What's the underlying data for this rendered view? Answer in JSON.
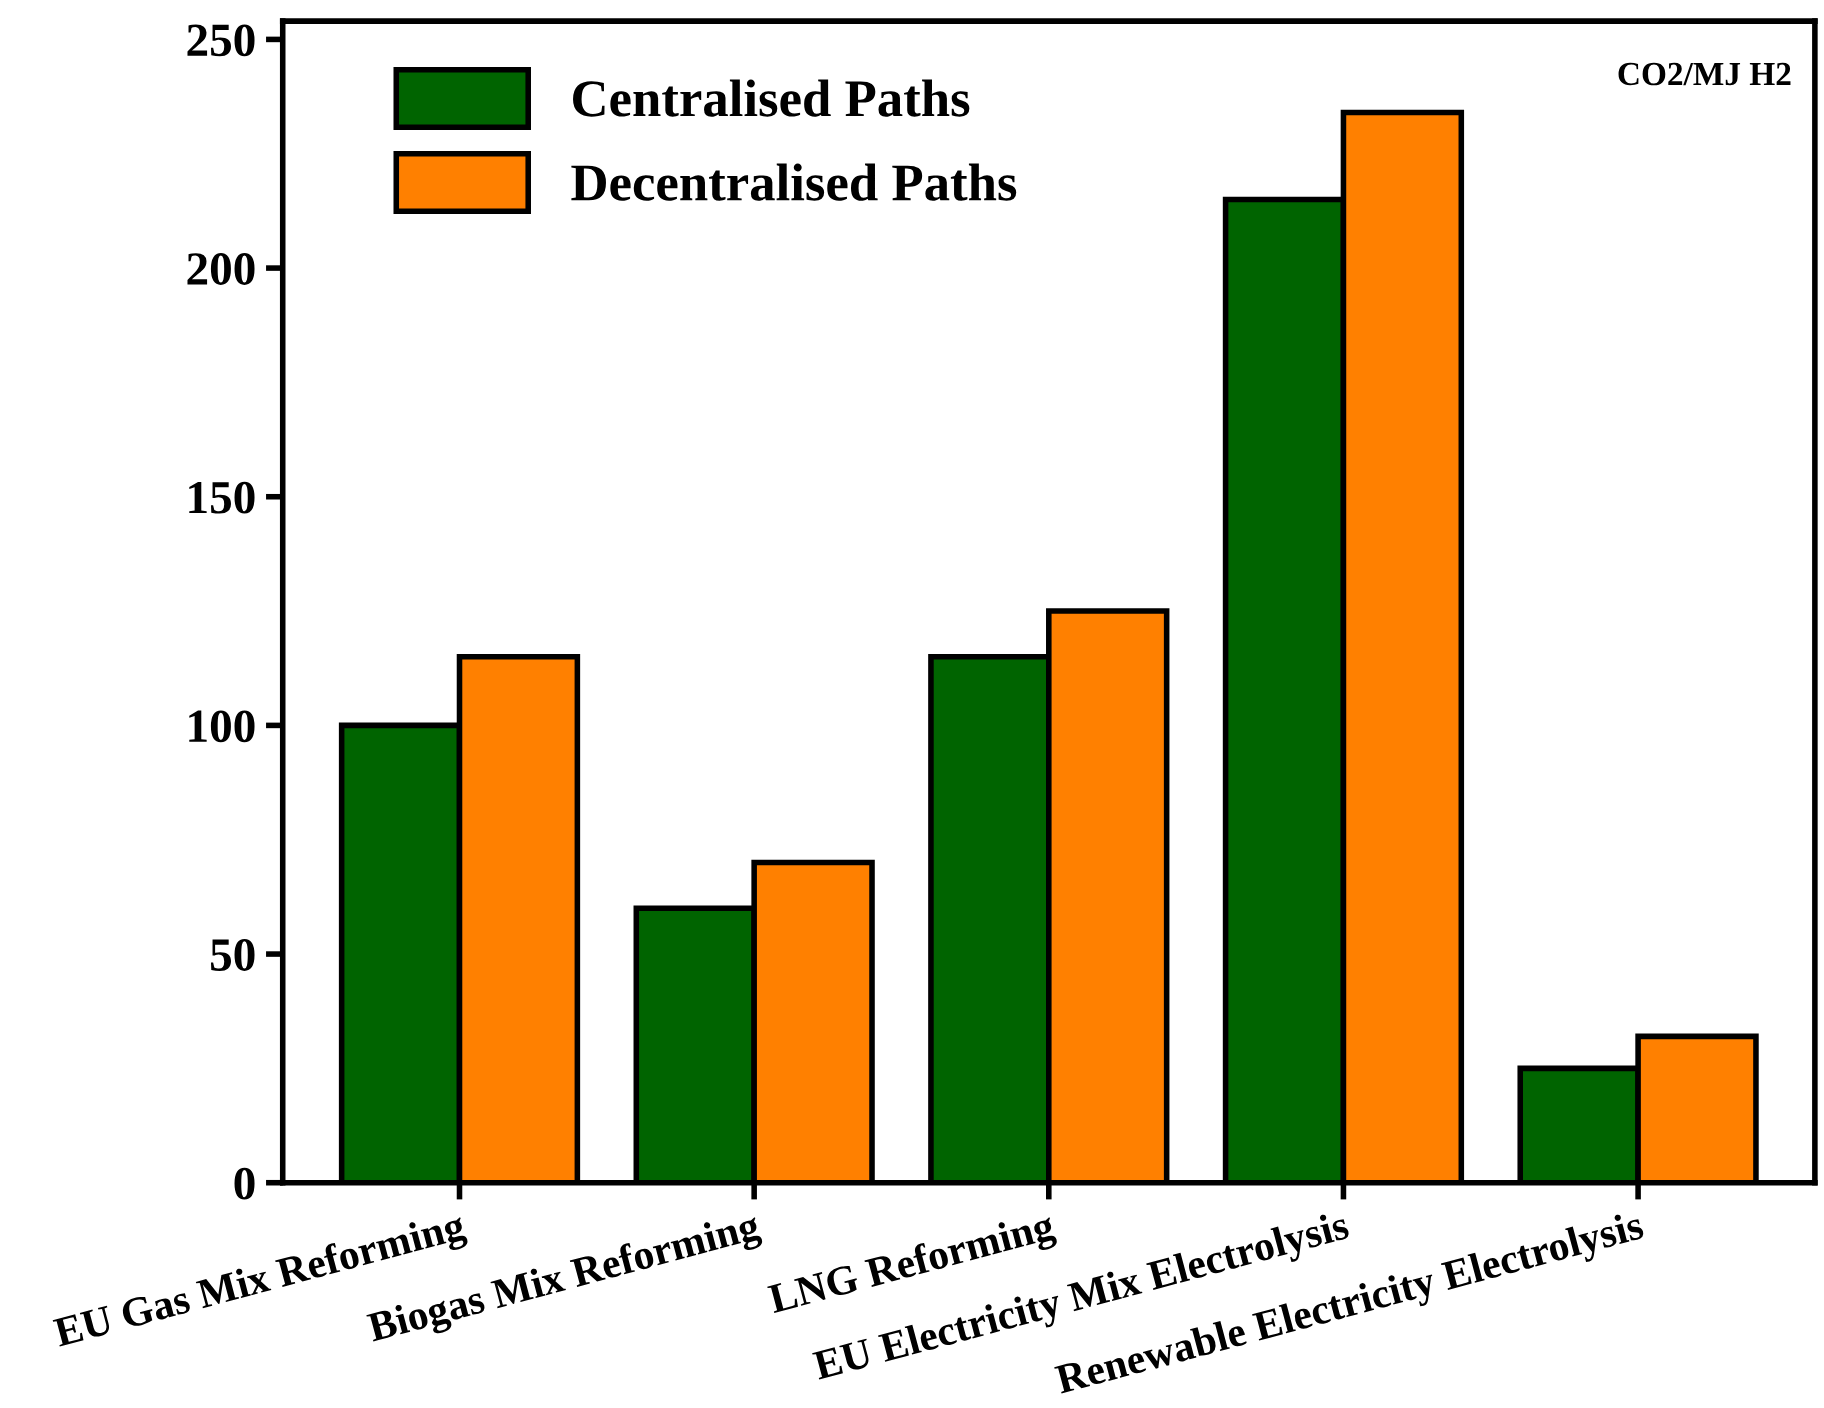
{
  "chart_data": {
    "type": "bar",
    "categories": [
      "EU Gas Mix Reforming",
      "Biogas Mix Reforming",
      "LNG Reforming",
      "EU Electricity Mix Electrolysis",
      "Renewable Electricity Electrolysis"
    ],
    "series": [
      {
        "name": "Centralised Paths",
        "color": "#006400",
        "values": [
          100,
          60,
          115,
          215,
          25
        ]
      },
      {
        "name": "Decentralised Paths",
        "color": "#ff8000",
        "values": [
          115,
          70,
          125,
          234,
          32
        ]
      }
    ],
    "ylim": [
      0,
      254
    ],
    "yticks": [
      0,
      50,
      100,
      150,
      200,
      250
    ],
    "grid": false,
    "legend": "top left",
    "annotations": [
      "CO2/MJ H2"
    ]
  }
}
